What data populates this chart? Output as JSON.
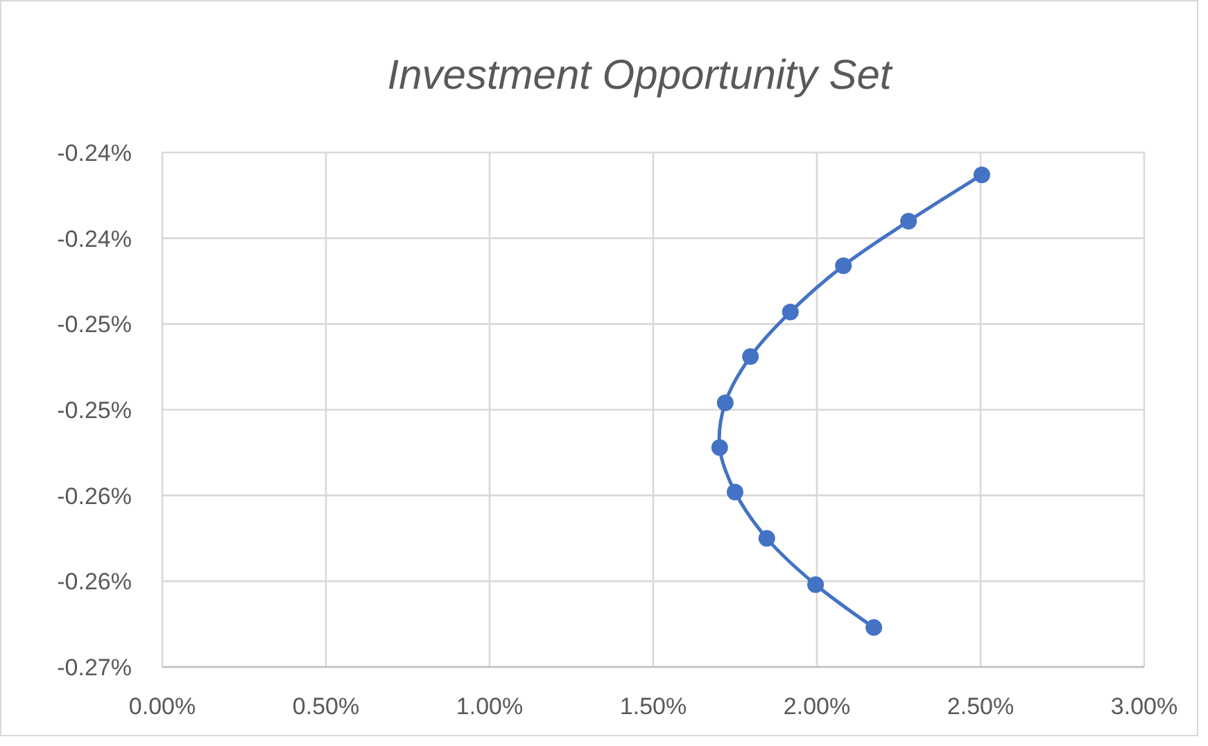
{
  "chart_data": {
    "type": "line",
    "title": "Investment Opportunity Set",
    "series": [
      {
        "color": "#4472c4",
        "x": [
          2.504,
          2.28,
          2.081,
          1.919,
          1.797,
          1.72,
          1.703,
          1.75,
          1.847,
          1.996,
          2.174
        ],
        "values": [
          -0.2363,
          -0.239,
          -0.2416,
          -0.2443,
          -0.2469,
          -0.2496,
          -0.2522,
          -0.2548,
          -0.2575,
          -0.2602,
          -0.2627
        ]
      }
    ],
    "xlim": [
      0,
      3
    ],
    "xticks": [
      {
        "value": 0,
        "label": "0.00%"
      },
      {
        "value": 0.5,
        "label": "0.50%"
      },
      {
        "value": 1,
        "label": "1.00%"
      },
      {
        "value": 1.5,
        "label": "1.50%"
      },
      {
        "value": 2,
        "label": "2.00%"
      },
      {
        "value": 2.5,
        "label": "2.50%"
      },
      {
        "value": 3,
        "label": "3.00%"
      }
    ],
    "ylim": [
      -0.265,
      -0.235
    ],
    "yticks": [
      {
        "value": -0.235,
        "label": "-0.24%"
      },
      {
        "value": -0.24,
        "label": "-0.24%"
      },
      {
        "value": -0.245,
        "label": "-0.25%"
      },
      {
        "value": -0.25,
        "label": "-0.25%"
      },
      {
        "value": -0.255,
        "label": "-0.26%"
      },
      {
        "value": -0.26,
        "label": "-0.26%"
      },
      {
        "value": -0.265,
        "label": "-0.27%"
      }
    ],
    "grid": true,
    "marker": "circle",
    "line_style": "solid"
  }
}
